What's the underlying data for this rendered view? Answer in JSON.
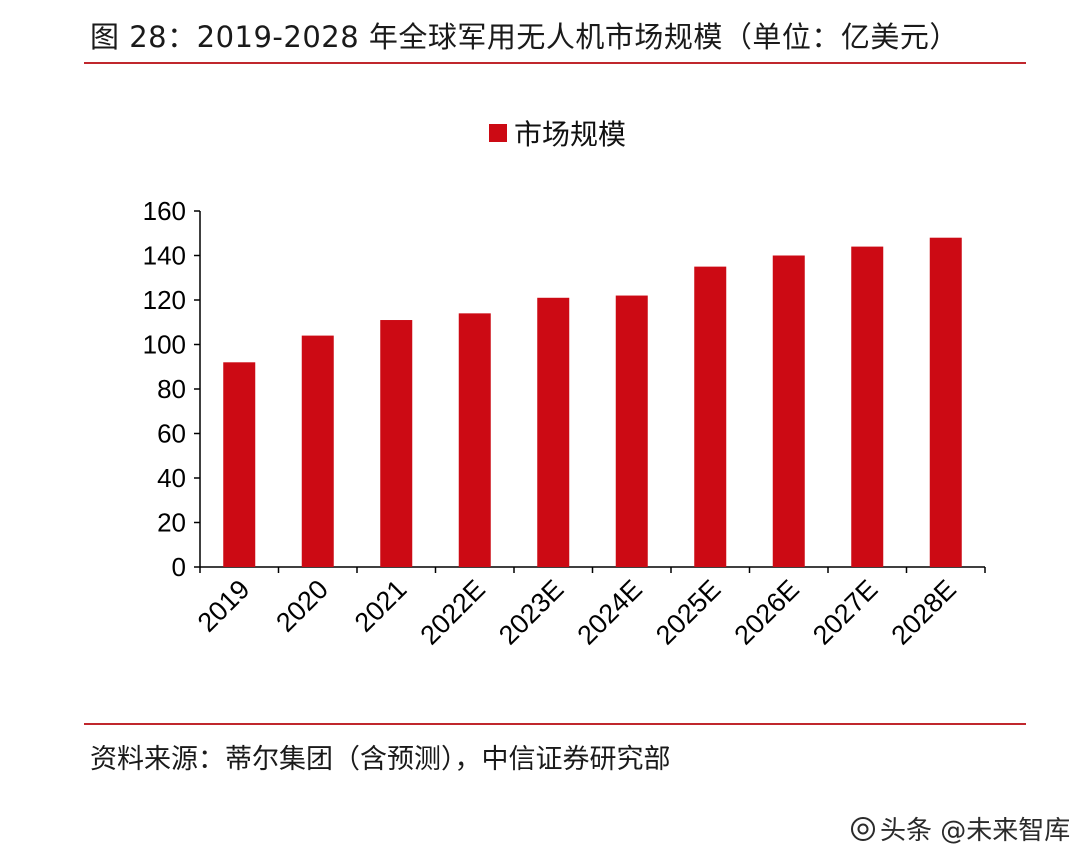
{
  "figure": {
    "title": "图 28：2019-2028 年全球军用无人机市场规模（单位：亿美元）",
    "source": "资料来源：蒂尔集团（含预测），中信证券研究部",
    "watermark": "头条 @未来智库"
  },
  "colors": {
    "accent": "#c0272d",
    "bar": "#cc0a14",
    "axis": "#000000"
  },
  "chart_data": {
    "type": "bar",
    "title": "",
    "xlabel": "",
    "ylabel": "",
    "categories": [
      "2019",
      "2020",
      "2021",
      "2022E",
      "2023E",
      "2024E",
      "2025E",
      "2026E",
      "2027E",
      "2028E"
    ],
    "series": [
      {
        "name": "市场规模",
        "values": [
          92,
          104,
          111,
          114,
          121,
          122,
          135,
          140,
          144,
          148
        ]
      }
    ],
    "ylim": [
      0,
      160
    ],
    "yticks": [
      0,
      20,
      40,
      60,
      80,
      100,
      120,
      140,
      160
    ],
    "grid": false,
    "legend": "top-center"
  }
}
